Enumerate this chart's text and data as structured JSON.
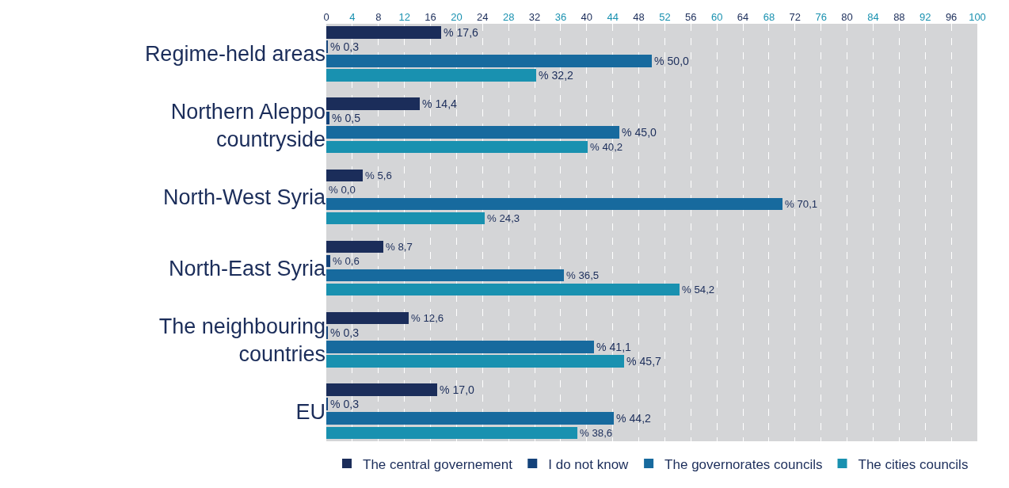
{
  "chart_data": {
    "type": "bar",
    "orientation": "horizontal",
    "categories": [
      "Regime-held areas",
      "Northern Aleppo countryside",
      "North-West Syria",
      "North-East Syria",
      "The neighbouring countries",
      "EU"
    ],
    "series": [
      {
        "name": "The central governement",
        "color": "#1b2d5a",
        "values": [
          17.6,
          14.4,
          5.6,
          8.7,
          12.6,
          17.0
        ],
        "value_labels": [
          "% 17,6",
          "% 14,4",
          "% 5,6",
          "% 8,7",
          "% 12,6",
          "% 17,0"
        ]
      },
      {
        "name": "I do not know",
        "color": "#13427a",
        "values": [
          0.3,
          0.5,
          0.0,
          0.6,
          0.3,
          0.3
        ],
        "value_labels": [
          "% 0,3",
          "% 0,5",
          "% 0,0",
          "% 0,6",
          "% 0,3",
          "% 0,3"
        ]
      },
      {
        "name": "The governorates councils",
        "color": "#176a9e",
        "values": [
          50.0,
          45.0,
          70.1,
          36.5,
          41.1,
          44.2
        ],
        "value_labels": [
          "% 50,0",
          "% 45,0",
          "% 70,1",
          "% 36,5",
          "% 41,1",
          "% 44,2"
        ]
      },
      {
        "name": "The cities councils",
        "color": "#1991b0",
        "values": [
          32.2,
          40.2,
          24.3,
          54.2,
          45.7,
          38.6
        ],
        "value_labels": [
          "% 32,2",
          "% 40,2",
          "% 24,3",
          "% 54,2",
          "% 45,7",
          "% 38,6"
        ]
      }
    ],
    "xlim": [
      0,
      100
    ],
    "xticks": [
      0,
      4,
      8,
      12,
      16,
      20,
      24,
      28,
      32,
      36,
      40,
      44,
      48,
      52,
      56,
      60,
      64,
      68,
      72,
      76,
      80,
      84,
      88,
      92,
      96,
      100
    ],
    "grid": "x",
    "legend": "bottom"
  }
}
